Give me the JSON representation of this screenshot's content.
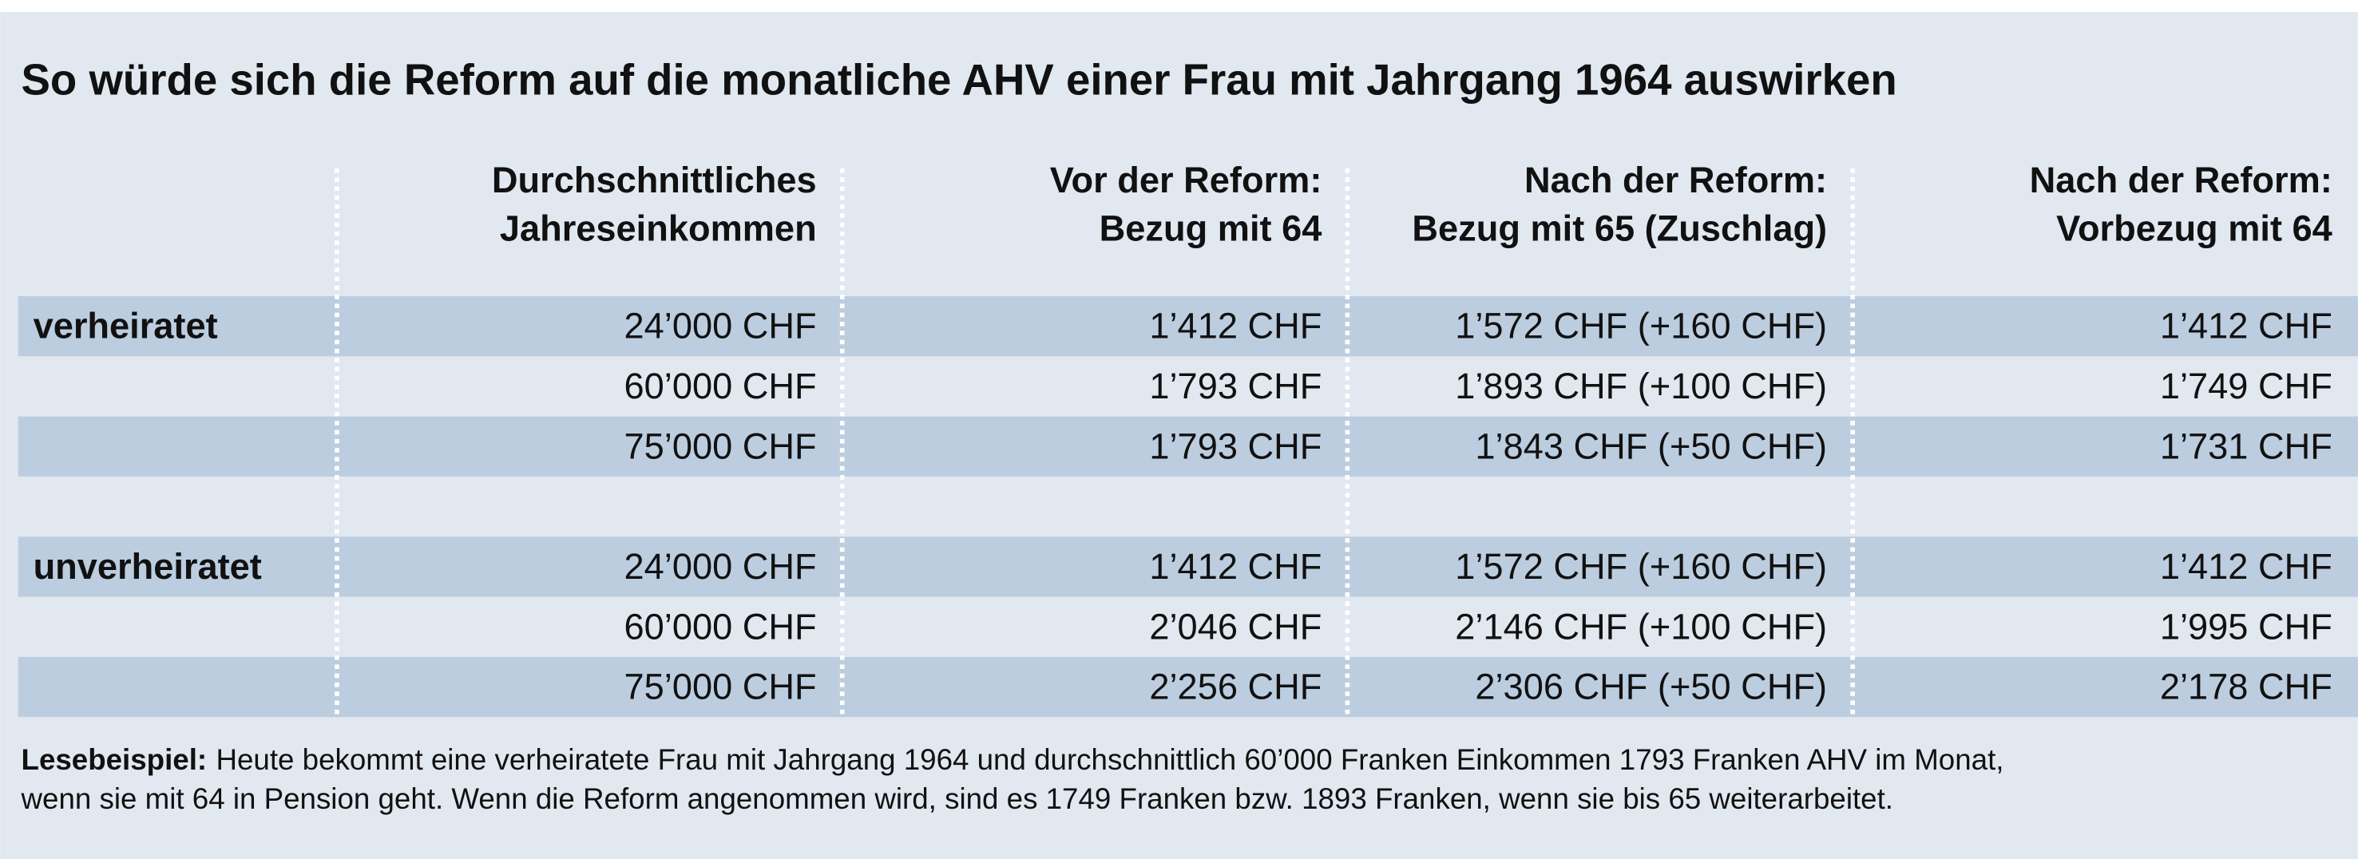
{
  "title": "So würde sich die Reform auf die monatliche AHV einer Frau mit Jahrgang 1964 auswirken",
  "headers": [
    [
      "Durchschnittliches",
      "Jahreseinkommen"
    ],
    [
      "Vor der Reform:",
      "Bezug mit 64"
    ],
    [
      "Nach der Reform:",
      "Bezug mit 65 (Zuschlag)"
    ],
    [
      "Nach der Reform:",
      "Vorbezug mit 64"
    ]
  ],
  "groups": [
    {
      "label": "verheiratet",
      "rows": [
        [
          "24’000 CHF",
          "1’412 CHF",
          "1’572 CHF (+160 CHF)",
          "1’412 CHF"
        ],
        [
          "60’000 CHF",
          "1’793 CHF",
          "1’893 CHF (+100 CHF)",
          "1’749 CHF"
        ],
        [
          "75’000 CHF",
          "1’793 CHF",
          "1’843 CHF (+50 CHF)",
          "1’731 CHF"
        ]
      ]
    },
    {
      "label": "unverheiratet",
      "rows": [
        [
          "24’000 CHF",
          "1’412 CHF",
          "1’572 CHF (+160 CHF)",
          "1’412 CHF"
        ],
        [
          "60’000 CHF",
          "2’046 CHF",
          "2’146 CHF (+100 CHF)",
          "1’995 CHF"
        ],
        [
          "75’000 CHF",
          "2’256 CHF",
          "2’306 CHF (+50 CHF)",
          "2’178 CHF"
        ]
      ]
    }
  ],
  "footnote": {
    "lead": "Lesebeispiel:",
    "lines": [
      "Heute bekommt eine verheiratete Frau mit Jahrgang 1964 und durchschnittlich 60’000 Franken Einkommen 1793 Franken AHV im Monat,",
      "wenn sie mit 64 in Pension geht. Wenn die Reform angenommen wird, sind es 1749 Franken bzw. 1893 Franken, wenn sie bis 65 weiterarbeitet."
    ]
  }
}
